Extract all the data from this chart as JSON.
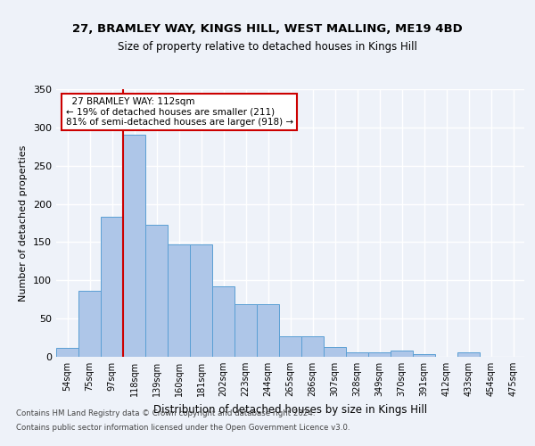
{
  "title1": "27, BRAMLEY WAY, KINGS HILL, WEST MALLING, ME19 4BD",
  "title2": "Size of property relative to detached houses in Kings Hill",
  "xlabel": "Distribution of detached houses by size in Kings Hill",
  "ylabel": "Number of detached properties",
  "annotation_line1": "  27 BRAMLEY WAY: 112sqm  ",
  "annotation_line2": "← 19% of detached houses are smaller (211)",
  "annotation_line3": "81% of semi-detached houses are larger (918) →",
  "footer1": "Contains HM Land Registry data © Crown copyright and database right 2024.",
  "footer2": "Contains public sector information licensed under the Open Government Licence v3.0.",
  "bar_categories": [
    "54sqm",
    "75sqm",
    "97sqm",
    "118sqm",
    "139sqm",
    "160sqm",
    "181sqm",
    "202sqm",
    "223sqm",
    "244sqm",
    "265sqm",
    "286sqm",
    "307sqm",
    "328sqm",
    "349sqm",
    "370sqm",
    "391sqm",
    "412sqm",
    "433sqm",
    "454sqm",
    "475sqm"
  ],
  "bar_values": [
    12,
    86,
    183,
    290,
    173,
    147,
    147,
    92,
    69,
    69,
    27,
    27,
    13,
    6,
    6,
    8,
    3,
    0,
    6,
    0,
    0
  ],
  "bar_color": "#aec6e8",
  "bar_edge_color": "#5a9fd4",
  "vline_color": "#cc0000",
  "annotation_box_color": "#cc0000",
  "background_color": "#eef2f9",
  "grid_color": "#ffffff",
  "ylim": [
    0,
    350
  ],
  "yticks": [
    0,
    50,
    100,
    150,
    200,
    250,
    300,
    350
  ]
}
